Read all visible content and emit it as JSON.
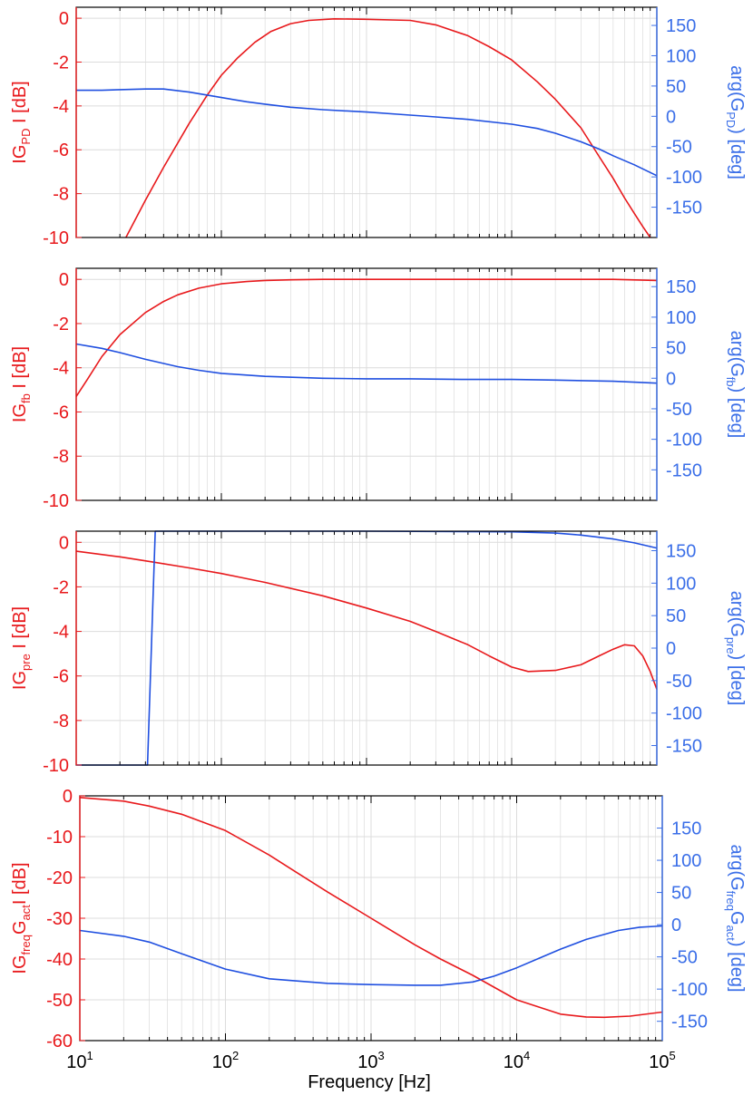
{
  "colors": {
    "magnitude": "#e8191c",
    "phase": "#1f4fe0",
    "phase_axis": "#3b6fe8",
    "grid": "#dcdcdc",
    "frame": "#000000"
  },
  "xlabel": "Frequency [Hz]",
  "chart_data": [
    {
      "type": "line",
      "xscale": "log",
      "xlim": [
        10,
        100000
      ],
      "ylim_left": [
        -10,
        0.5
      ],
      "yticks_left": [
        0,
        -2,
        -4,
        -6,
        -8,
        -10
      ],
      "ylim_right": [
        -200,
        180
      ],
      "yticks_right": [
        150,
        100,
        50,
        0,
        -50,
        -100,
        -150
      ],
      "ylabel_left": {
        "pre": "IG",
        "sub": "PD",
        "post": " I [dB]"
      },
      "ylabel_right": {
        "pre": "arg(G",
        "sub": "PD",
        "post": ") [deg]"
      },
      "series": [
        {
          "axis": "left",
          "color": "magnitude",
          "x": [
            22,
            30,
            40,
            60,
            80,
            100,
            130,
            170,
            220,
            300,
            400,
            600,
            1000,
            2000,
            3000,
            5000,
            7000,
            10000,
            15000,
            20000,
            30000,
            40000,
            50000,
            60000,
            70000,
            80000,
            90000
          ],
          "y": [
            -10,
            -8.3,
            -6.8,
            -4.8,
            -3.5,
            -2.6,
            -1.8,
            -1.1,
            -0.6,
            -0.25,
            -0.1,
            -0.03,
            -0.05,
            -0.1,
            -0.3,
            -0.8,
            -1.3,
            -1.9,
            -2.9,
            -3.7,
            -5.0,
            -6.3,
            -7.3,
            -8.2,
            -8.9,
            -9.5,
            -10
          ]
        },
        {
          "axis": "right",
          "color": "phase",
          "x": [
            10,
            15,
            20,
            30,
            40,
            60,
            100,
            150,
            200,
            300,
            500,
            1000,
            2000,
            3000,
            5000,
            10000,
            15000,
            20000,
            30000,
            40000,
            50000,
            70000,
            100000
          ],
          "y": [
            43,
            43,
            44,
            45,
            45,
            40,
            31,
            24,
            20,
            15,
            11,
            7,
            2,
            -1,
            -5,
            -13,
            -20,
            -28,
            -42,
            -54,
            -65,
            -80,
            -98
          ]
        }
      ]
    },
    {
      "type": "line",
      "xscale": "log",
      "xlim": [
        10,
        100000
      ],
      "ylim_left": [
        -10,
        0.5
      ],
      "yticks_left": [
        0,
        -2,
        -4,
        -6,
        -8,
        -10
      ],
      "ylim_right": [
        -200,
        180
      ],
      "yticks_right": [
        150,
        100,
        50,
        0,
        -50,
        -100,
        -150
      ],
      "ylabel_left": {
        "pre": "IG",
        "sub": "fb",
        "post": " I [dB]"
      },
      "ylabel_right": {
        "pre": "arg(G",
        "sub": "fb",
        "post": ") [deg]"
      },
      "series": [
        {
          "axis": "left",
          "color": "magnitude",
          "x": [
            10,
            12,
            15,
            20,
            30,
            40,
            50,
            70,
            100,
            150,
            200,
            300,
            500,
            1000,
            10000,
            50000,
            100000
          ],
          "y": [
            -5.3,
            -4.5,
            -3.5,
            -2.5,
            -1.5,
            -1.0,
            -0.7,
            -0.4,
            -0.2,
            -0.1,
            -0.05,
            -0.02,
            0,
            0,
            0,
            0,
            -0.05
          ]
        },
        {
          "axis": "right",
          "color": "phase",
          "x": [
            10,
            15,
            20,
            30,
            50,
            70,
            100,
            200,
            500,
            1000,
            2000,
            5000,
            10000,
            20000,
            50000,
            100000
          ],
          "y": [
            56,
            49,
            42,
            31,
            19,
            13,
            8,
            3,
            0,
            -1,
            -1,
            -2,
            -2,
            -3,
            -5,
            -8
          ]
        }
      ]
    },
    {
      "type": "line",
      "xscale": "log",
      "xlim": [
        10,
        100000
      ],
      "ylim_left": [
        -10,
        0.5
      ],
      "yticks_left": [
        0,
        -2,
        -4,
        -6,
        -8,
        -10
      ],
      "ylim_right": [
        -180,
        180
      ],
      "yticks_right": [
        150,
        100,
        50,
        0,
        -50,
        -100,
        -150
      ],
      "ylabel_left": {
        "pre": "IG",
        "sub": "pre",
        "post": " I [dB]"
      },
      "ylabel_right": {
        "pre": "arg(G",
        "sub": "pre",
        "post": ") [deg]"
      },
      "series": [
        {
          "axis": "left",
          "color": "magnitude",
          "x": [
            10,
            20,
            35,
            60,
            100,
            200,
            500,
            1000,
            2000,
            3000,
            5000,
            7000,
            10000,
            13000,
            20000,
            30000,
            40000,
            50000,
            60000,
            70000,
            80000,
            90000,
            100000
          ],
          "y": [
            -0.4,
            -0.65,
            -0.9,
            -1.15,
            -1.4,
            -1.8,
            -2.4,
            -2.95,
            -3.55,
            -4.0,
            -4.6,
            -5.1,
            -5.6,
            -5.8,
            -5.75,
            -5.5,
            -5.1,
            -4.8,
            -4.6,
            -4.65,
            -5.1,
            -5.8,
            -6.6
          ]
        },
        {
          "axis": "right",
          "color": "phase",
          "x": [
            10,
            31,
            35,
            36,
            100,
            1000,
            10000,
            20000,
            30000,
            50000,
            70000,
            100000
          ],
          "y": [
            -180,
            -180,
            180,
            180,
            180,
            180,
            179,
            177,
            174,
            168,
            162,
            154
          ]
        }
      ]
    },
    {
      "type": "line",
      "xscale": "log",
      "xlim": [
        10,
        100000
      ],
      "ylim_left": [
        -60,
        0
      ],
      "yticks_left": [
        0,
        -10,
        -20,
        -30,
        -40,
        -50,
        -60
      ],
      "ylim_right": [
        -180,
        200
      ],
      "yticks_right": [
        150,
        100,
        50,
        0,
        -50,
        -100,
        -150
      ],
      "xticks": [
        {
          "base": "10",
          "exp": "1"
        },
        {
          "base": "10",
          "exp": "2"
        },
        {
          "base": "10",
          "exp": "3"
        },
        {
          "base": "10",
          "exp": "4"
        },
        {
          "base": "10",
          "exp": "5"
        }
      ],
      "ylabel_left": {
        "pre": "IG",
        "sub": "freq",
        "mid": "G",
        "sub2": "act",
        "post": "I [dB]"
      },
      "ylabel_right": {
        "pre": "arg(G",
        "sub": "freq",
        "mid": "G",
        "sub2": "act",
        "post": ") [deg]"
      },
      "series": [
        {
          "axis": "left",
          "color": "magnitude",
          "x": [
            10,
            20,
            30,
            50,
            100,
            200,
            300,
            500,
            1000,
            2000,
            3000,
            5000,
            10000,
            20000,
            30000,
            40000,
            60000,
            100000
          ],
          "y": [
            -0.4,
            -1.3,
            -2.5,
            -4.5,
            -8.5,
            -14.5,
            -18.5,
            -23.5,
            -30,
            -36.5,
            -40,
            -44,
            -50,
            -53.5,
            -54.2,
            -54.3,
            -54,
            -53
          ]
        },
        {
          "axis": "right",
          "color": "phase",
          "x": [
            10,
            20,
            30,
            50,
            100,
            200,
            500,
            1000,
            2000,
            3000,
            5000,
            7000,
            10000,
            15000,
            20000,
            30000,
            50000,
            70000,
            100000
          ],
          "y": [
            -9,
            -18,
            -27,
            -45,
            -69,
            -84,
            -91,
            -93,
            -94,
            -94,
            -89,
            -80,
            -67,
            -50,
            -38,
            -23,
            -9,
            -4,
            -2
          ]
        }
      ]
    }
  ]
}
